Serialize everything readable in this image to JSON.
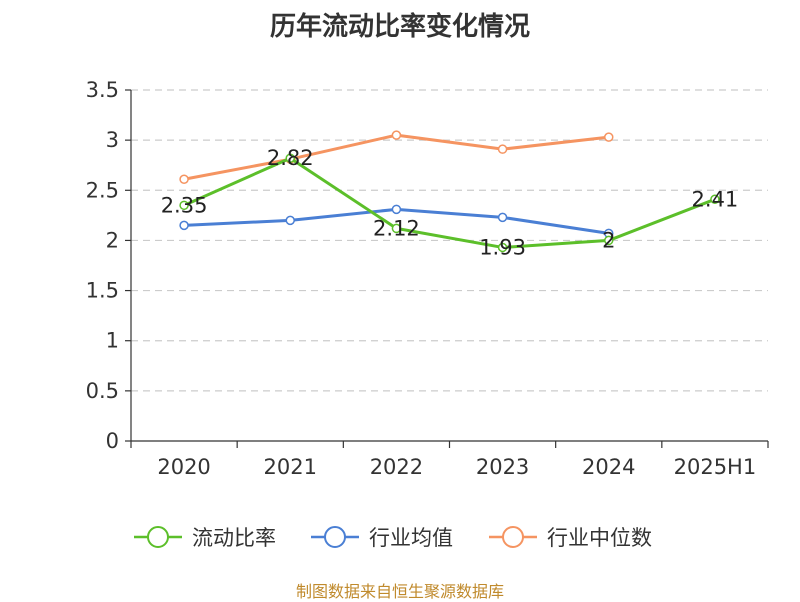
{
  "chart_data": {
    "type": "line",
    "title": "历年流动比率变化情况",
    "categories": [
      "2020",
      "2021",
      "2022",
      "2023",
      "2024",
      "2025H1"
    ],
    "ylim": [
      0,
      3.5
    ],
    "yticks": [
      "0",
      "0.5",
      "1",
      "1.5",
      "2",
      "2.5",
      "3",
      "3.5"
    ],
    "grid": true,
    "legend_position": "bottom",
    "series": [
      {
        "name": "流动比率",
        "color": "#5cbf2a",
        "values": [
          2.35,
          2.82,
          2.12,
          1.93,
          2,
          2.41
        ],
        "labels": [
          "2.35",
          "2.82",
          "2.12",
          "1.93",
          "2",
          "2.41"
        ]
      },
      {
        "name": "行业均值",
        "color": "#4a7fd4",
        "values": [
          2.15,
          2.2,
          2.31,
          2.23,
          2.07,
          null
        ]
      },
      {
        "name": "行业中位数",
        "color": "#f59461",
        "values": [
          2.61,
          2.81,
          3.05,
          2.91,
          3.03,
          null
        ]
      }
    ]
  },
  "footer": "制图数据来自恒生聚源数据库"
}
